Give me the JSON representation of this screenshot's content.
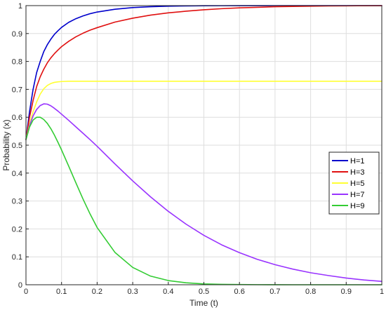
{
  "chart_data": {
    "type": "line",
    "title": "",
    "xlabel": "Time (t)",
    "ylabel": "Probability (x)",
    "xlim": [
      0,
      1
    ],
    "ylim": [
      0,
      1
    ],
    "grid": true,
    "legend_position": "right",
    "x_ticks": [
      "0",
      "0.1",
      "0.2",
      "0.3",
      "0.4",
      "0.5",
      "0.6",
      "0.7",
      "0.8",
      "0.9",
      "1"
    ],
    "y_ticks": [
      "0",
      "0.1",
      "0.2",
      "0.3",
      "0.4",
      "0.5",
      "0.6",
      "0.7",
      "0.8",
      "0.9",
      "1"
    ],
    "x": [
      0,
      0.01,
      0.02,
      0.03,
      0.04,
      0.05,
      0.06,
      0.07,
      0.08,
      0.09,
      0.1,
      0.12,
      0.14,
      0.16,
      0.18,
      0.2,
      0.25,
      0.3,
      0.35,
      0.4,
      0.45,
      0.5,
      0.55,
      0.6,
      0.65,
      0.7,
      0.75,
      0.8,
      0.85,
      0.9,
      0.95,
      1.0
    ],
    "series": [
      {
        "name": "H=1",
        "color": "#0000cc",
        "values": [
          0.52,
          0.62,
          0.7,
          0.76,
          0.8,
          0.835,
          0.86,
          0.88,
          0.897,
          0.91,
          0.922,
          0.94,
          0.953,
          0.963,
          0.971,
          0.977,
          0.987,
          0.993,
          0.996,
          0.998,
          0.999,
          0.9995,
          0.9997,
          0.9998,
          0.9999,
          1.0,
          1.0,
          1.0,
          1.0,
          1.0,
          1.0,
          1.0
        ]
      },
      {
        "name": "H=3",
        "color": "#e01010",
        "values": [
          0.52,
          0.6,
          0.66,
          0.71,
          0.745,
          0.772,
          0.795,
          0.813,
          0.828,
          0.841,
          0.853,
          0.872,
          0.888,
          0.901,
          0.912,
          0.921,
          0.941,
          0.955,
          0.966,
          0.974,
          0.98,
          0.985,
          0.989,
          0.992,
          0.994,
          0.996,
          0.997,
          0.998,
          0.999,
          0.9993,
          0.9996,
          0.9998
        ]
      },
      {
        "name": "H=5",
        "color": "#ffff33",
        "values": [
          0.52,
          0.575,
          0.62,
          0.655,
          0.683,
          0.702,
          0.714,
          0.721,
          0.725,
          0.727,
          0.728,
          0.729,
          0.729,
          0.729,
          0.729,
          0.729,
          0.729,
          0.729,
          0.729,
          0.729,
          0.729,
          0.729,
          0.729,
          0.729,
          0.729,
          0.729,
          0.729,
          0.729,
          0.729,
          0.729,
          0.729,
          0.729
        ]
      },
      {
        "name": "H=7",
        "color": "#9933ff",
        "values": [
          0.52,
          0.57,
          0.605,
          0.628,
          0.642,
          0.648,
          0.647,
          0.641,
          0.632,
          0.622,
          0.611,
          0.589,
          0.566,
          0.543,
          0.52,
          0.496,
          0.433,
          0.372,
          0.315,
          0.263,
          0.217,
          0.177,
          0.143,
          0.115,
          0.091,
          0.072,
          0.056,
          0.043,
          0.033,
          0.024,
          0.017,
          0.012
        ]
      },
      {
        "name": "H=9",
        "color": "#33cc33",
        "values": [
          0.52,
          0.565,
          0.59,
          0.6,
          0.6,
          0.592,
          0.578,
          0.559,
          0.536,
          0.51,
          0.483,
          0.425,
          0.366,
          0.308,
          0.254,
          0.205,
          0.116,
          0.062,
          0.031,
          0.015,
          0.007,
          0.003,
          0.0015,
          0.0007,
          0.0003,
          0.0001,
          0.0,
          0.0,
          0.0,
          0.0,
          0.0,
          0.0
        ]
      }
    ]
  }
}
